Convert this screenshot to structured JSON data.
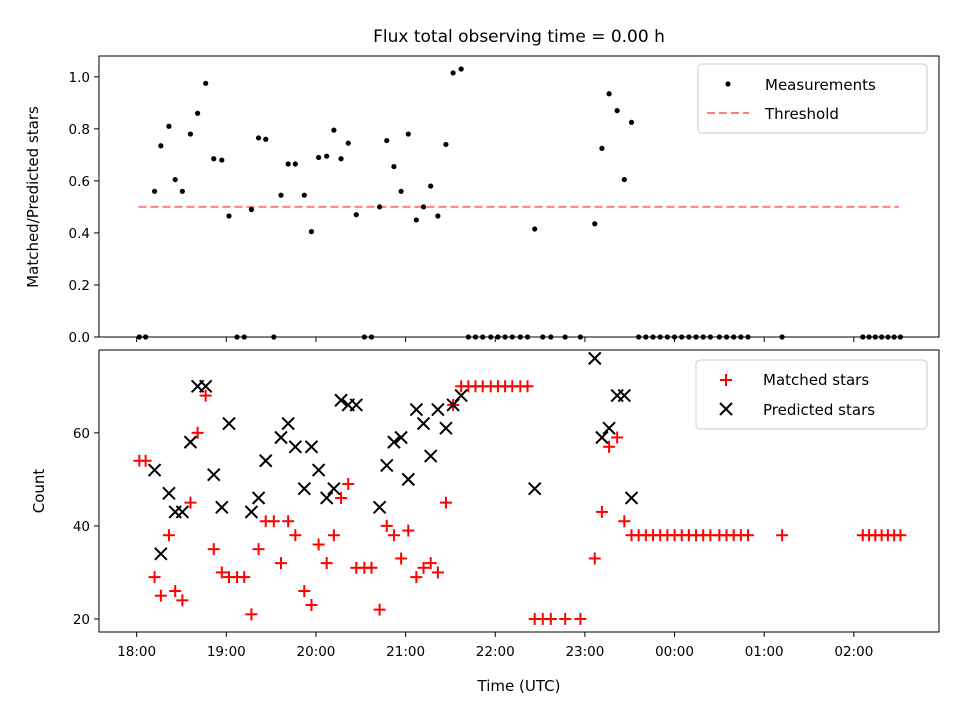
{
  "title": "Flux total observing time = 0.00 h",
  "chart_data": [
    {
      "type": "scatter",
      "panel": "top",
      "ylabel": "Matched/Predicted stars",
      "xlabel": "",
      "ylim": [
        0,
        1.08
      ],
      "xlim": [
        17.58,
        26.95
      ],
      "yticks": [
        0.0,
        0.2,
        0.4,
        0.6,
        0.8,
        1.0
      ],
      "ytick_labels": [
        "0.0",
        "0.2",
        "0.4",
        "0.6",
        "0.8",
        "1.0"
      ],
      "legend_position": "top-right",
      "threshold": {
        "name": "Threshold",
        "value": 0.5,
        "x_range": [
          18.02,
          26.5
        ],
        "color": "#ff7f7f"
      },
      "series": [
        {
          "name": "Measurements",
          "color": "#000000",
          "points": [
            [
              18.03,
              0.0
            ],
            [
              18.1,
              0.0
            ],
            [
              18.2,
              0.56
            ],
            [
              18.27,
              0.735
            ],
            [
              18.36,
              0.81
            ],
            [
              18.43,
              0.605
            ],
            [
              18.51,
              0.56
            ],
            [
              18.6,
              0.78
            ],
            [
              18.68,
              0.86
            ],
            [
              18.77,
              0.975
            ],
            [
              18.86,
              0.685
            ],
            [
              18.95,
              0.68
            ],
            [
              19.03,
              0.465
            ],
            [
              19.12,
              0.0
            ],
            [
              19.2,
              0.0
            ],
            [
              19.28,
              0.49
            ],
            [
              19.36,
              0.765
            ],
            [
              19.44,
              0.76
            ],
            [
              19.53,
              0.0
            ],
            [
              19.61,
              0.545
            ],
            [
              19.69,
              0.665
            ],
            [
              19.77,
              0.665
            ],
            [
              19.87,
              0.545
            ],
            [
              19.95,
              0.405
            ],
            [
              20.03,
              0.69
            ],
            [
              20.12,
              0.695
            ],
            [
              20.2,
              0.795
            ],
            [
              20.28,
              0.685
            ],
            [
              20.36,
              0.745
            ],
            [
              20.45,
              0.47
            ],
            [
              20.54,
              0.0
            ],
            [
              20.62,
              0.0
            ],
            [
              20.71,
              0.5
            ],
            [
              20.79,
              0.755
            ],
            [
              20.87,
              0.655
            ],
            [
              20.95,
              0.56
            ],
            [
              21.03,
              0.78
            ],
            [
              21.12,
              0.45
            ],
            [
              21.2,
              0.5
            ],
            [
              21.28,
              0.58
            ],
            [
              21.36,
              0.465
            ],
            [
              21.45,
              0.74
            ],
            [
              21.53,
              1.015
            ],
            [
              21.62,
              1.03
            ],
            [
              21.7,
              0.0
            ],
            [
              21.78,
              0.0
            ],
            [
              21.86,
              0.0
            ],
            [
              21.95,
              0.0
            ],
            [
              22.03,
              0.0
            ],
            [
              22.11,
              0.0
            ],
            [
              22.19,
              0.0
            ],
            [
              22.28,
              0.0
            ],
            [
              22.36,
              0.0
            ],
            [
              22.44,
              0.415
            ],
            [
              22.53,
              0.0
            ],
            [
              22.62,
              0.0
            ],
            [
              22.78,
              0.0
            ],
            [
              22.95,
              0.0
            ],
            [
              23.11,
              0.435
            ],
            [
              23.19,
              0.725
            ],
            [
              23.27,
              0.935
            ],
            [
              23.36,
              0.87
            ],
            [
              23.44,
              0.605
            ],
            [
              23.52,
              0.825
            ],
            [
              23.6,
              0.0
            ],
            [
              23.68,
              0.0
            ],
            [
              23.76,
              0.0
            ],
            [
              23.84,
              0.0
            ],
            [
              23.92,
              0.0
            ],
            [
              24.0,
              0.0
            ],
            [
              24.08,
              0.0
            ],
            [
              24.16,
              0.0
            ],
            [
              24.24,
              0.0
            ],
            [
              24.32,
              0.0
            ],
            [
              24.4,
              0.0
            ],
            [
              24.5,
              0.0
            ],
            [
              24.58,
              0.0
            ],
            [
              24.66,
              0.0
            ],
            [
              24.74,
              0.0
            ],
            [
              24.82,
              0.0
            ],
            [
              25.2,
              0.0
            ],
            [
              26.1,
              0.0
            ],
            [
              26.17,
              0.0
            ],
            [
              26.24,
              0.0
            ],
            [
              26.31,
              0.0
            ],
            [
              26.38,
              0.0
            ],
            [
              26.45,
              0.0
            ],
            [
              26.52,
              0.0
            ]
          ]
        }
      ]
    },
    {
      "type": "scatter",
      "panel": "bottom",
      "ylabel": "Count",
      "xlabel": "Time (UTC)",
      "ylim": [
        17.2,
        77.8
      ],
      "xlim": [
        17.58,
        26.95
      ],
      "yticks": [
        20,
        40,
        60
      ],
      "ytick_labels": [
        "20",
        "40",
        "60"
      ],
      "xticks": [
        18,
        19,
        20,
        21,
        22,
        23,
        24,
        25,
        26
      ],
      "xtick_labels": [
        "18:00",
        "19:00",
        "20:00",
        "21:00",
        "22:00",
        "23:00",
        "00:00",
        "01:00",
        "02:00"
      ],
      "legend_position": "top-right",
      "series": [
        {
          "name": "Matched stars",
          "color": "#ff0000",
          "marker": "plus",
          "points": [
            [
              18.03,
              54
            ],
            [
              18.1,
              54
            ],
            [
              18.2,
              29
            ],
            [
              18.27,
              25
            ],
            [
              18.36,
              38
            ],
            [
              18.43,
              26
            ],
            [
              18.51,
              24
            ],
            [
              18.6,
              45
            ],
            [
              18.68,
              60
            ],
            [
              18.77,
              68
            ],
            [
              18.86,
              35
            ],
            [
              18.95,
              30
            ],
            [
              19.03,
              29
            ],
            [
              19.12,
              29
            ],
            [
              19.2,
              29
            ],
            [
              19.28,
              21
            ],
            [
              19.36,
              35
            ],
            [
              19.44,
              41
            ],
            [
              19.53,
              41
            ],
            [
              19.61,
              32
            ],
            [
              19.69,
              41
            ],
            [
              19.77,
              38
            ],
            [
              19.87,
              26
            ],
            [
              19.95,
              23
            ],
            [
              20.03,
              36
            ],
            [
              20.12,
              32
            ],
            [
              20.2,
              38
            ],
            [
              20.28,
              46
            ],
            [
              20.36,
              49
            ],
            [
              20.45,
              31
            ],
            [
              20.54,
              31
            ],
            [
              20.62,
              31
            ],
            [
              20.71,
              22
            ],
            [
              20.79,
              40
            ],
            [
              20.87,
              38
            ],
            [
              20.95,
              33
            ],
            [
              21.03,
              39
            ],
            [
              21.12,
              29
            ],
            [
              21.2,
              31
            ],
            [
              21.28,
              32
            ],
            [
              21.36,
              30
            ],
            [
              21.45,
              45
            ],
            [
              21.53,
              66
            ],
            [
              21.62,
              70
            ],
            [
              21.7,
              70
            ],
            [
              21.78,
              70
            ],
            [
              21.86,
              70
            ],
            [
              21.95,
              70
            ],
            [
              22.03,
              70
            ],
            [
              22.11,
              70
            ],
            [
              22.19,
              70
            ],
            [
              22.28,
              70
            ],
            [
              22.36,
              70
            ],
            [
              22.44,
              20
            ],
            [
              22.53,
              20
            ],
            [
              22.62,
              20
            ],
            [
              22.78,
              20
            ],
            [
              22.95,
              20
            ],
            [
              23.11,
              33
            ],
            [
              23.19,
              43
            ],
            [
              23.27,
              57
            ],
            [
              23.36,
              59
            ],
            [
              23.44,
              41
            ],
            [
              23.52,
              38
            ],
            [
              23.6,
              38
            ],
            [
              23.68,
              38
            ],
            [
              23.76,
              38
            ],
            [
              23.84,
              38
            ],
            [
              23.92,
              38
            ],
            [
              24.0,
              38
            ],
            [
              24.08,
              38
            ],
            [
              24.16,
              38
            ],
            [
              24.24,
              38
            ],
            [
              24.32,
              38
            ],
            [
              24.4,
              38
            ],
            [
              24.5,
              38
            ],
            [
              24.58,
              38
            ],
            [
              24.66,
              38
            ],
            [
              24.74,
              38
            ],
            [
              24.82,
              38
            ],
            [
              25.2,
              38
            ],
            [
              26.1,
              38
            ],
            [
              26.17,
              38
            ],
            [
              26.24,
              38
            ],
            [
              26.31,
              38
            ],
            [
              26.38,
              38
            ],
            [
              26.45,
              38
            ],
            [
              26.52,
              38
            ]
          ]
        },
        {
          "name": "Predicted stars",
          "color": "#000000",
          "marker": "x",
          "points": [
            [
              18.2,
              52
            ],
            [
              18.27,
              34
            ],
            [
              18.36,
              47
            ],
            [
              18.43,
              43
            ],
            [
              18.51,
              43
            ],
            [
              18.6,
              58
            ],
            [
              18.68,
              70
            ],
            [
              18.77,
              70
            ],
            [
              18.86,
              51
            ],
            [
              18.95,
              44
            ],
            [
              19.03,
              62
            ],
            [
              19.28,
              43
            ],
            [
              19.36,
              46
            ],
            [
              19.44,
              54
            ],
            [
              19.61,
              59
            ],
            [
              19.69,
              62
            ],
            [
              19.77,
              57
            ],
            [
              19.87,
              48
            ],
            [
              19.95,
              57
            ],
            [
              20.03,
              52
            ],
            [
              20.12,
              46
            ],
            [
              20.2,
              48
            ],
            [
              20.28,
              67
            ],
            [
              20.36,
              66
            ],
            [
              20.45,
              66
            ],
            [
              20.71,
              44
            ],
            [
              20.79,
              53
            ],
            [
              20.87,
              58
            ],
            [
              20.95,
              59
            ],
            [
              21.03,
              50
            ],
            [
              21.12,
              65
            ],
            [
              21.2,
              62
            ],
            [
              21.28,
              55
            ],
            [
              21.36,
              65
            ],
            [
              21.45,
              61
            ],
            [
              21.53,
              66
            ],
            [
              21.62,
              68
            ],
            [
              22.44,
              48
            ],
            [
              23.11,
              76
            ],
            [
              23.19,
              59
            ],
            [
              23.27,
              61
            ],
            [
              23.36,
              68
            ],
            [
              23.44,
              68
            ],
            [
              23.52,
              46
            ]
          ]
        }
      ]
    }
  ]
}
